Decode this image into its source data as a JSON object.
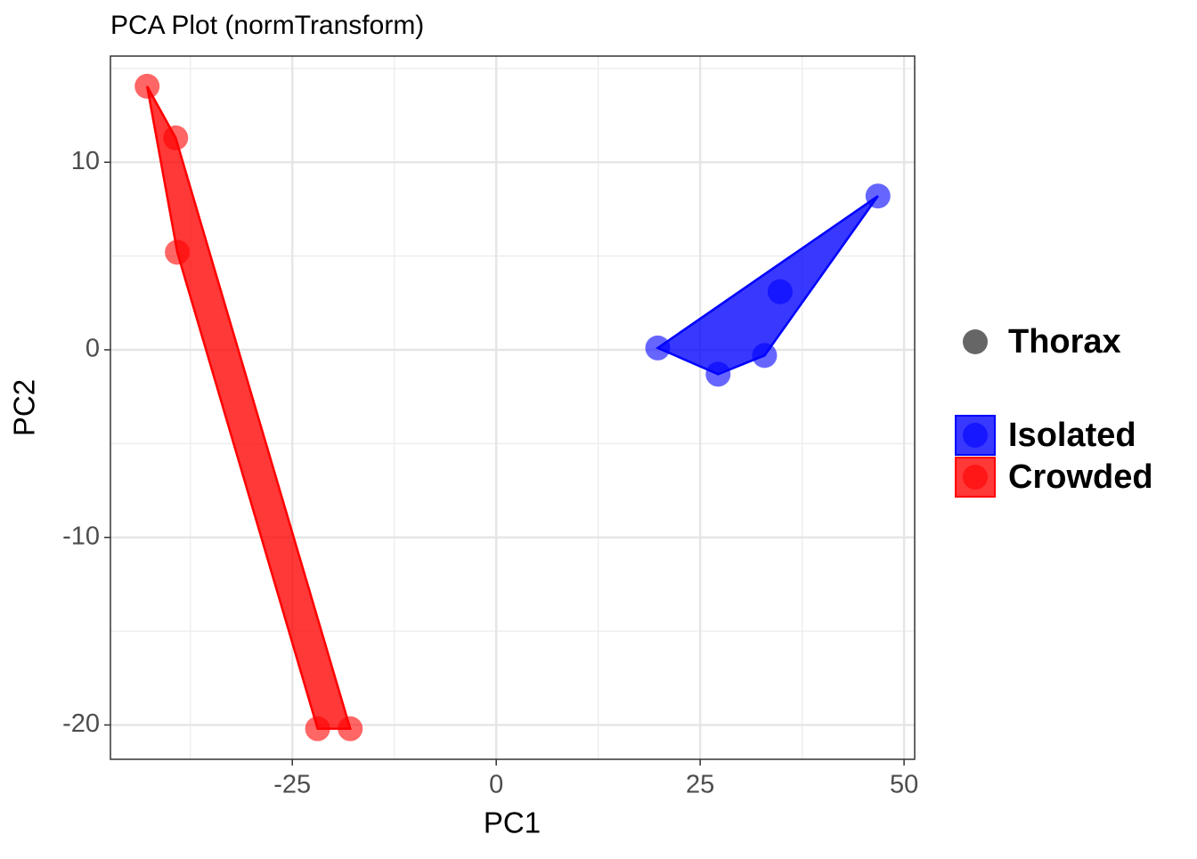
{
  "chart_data": {
    "type": "scatter",
    "title": "PCA Plot (normTransform)",
    "x_label": "PC1",
    "y_label": "PC2",
    "xlim": [
      -47.3,
      51.3
    ],
    "ylim": [
      -21.83,
      15.66
    ],
    "xticks": [
      -25,
      0,
      25,
      50
    ],
    "yticks": [
      -20,
      -10,
      0,
      10
    ],
    "grid": true,
    "hull": true,
    "legend": "right",
    "shape_legend": {
      "name": "Thorax",
      "color": "#666666"
    },
    "series": [
      {
        "name": "Isolated",
        "color": "#0000ff",
        "x": [
          19.8,
          27.2,
          32.9,
          34.8,
          46.8
        ],
        "values": [
          0.1,
          -1.3,
          -0.3,
          3.1,
          8.2
        ]
      },
      {
        "name": "Crowded",
        "color": "#ff0000",
        "x": [
          -42.8,
          -39.3,
          -39.1,
          -21.9,
          -17.9
        ],
        "values": [
          14.05,
          11.3,
          5.2,
          -20.2,
          -20.2
        ]
      }
    ]
  }
}
